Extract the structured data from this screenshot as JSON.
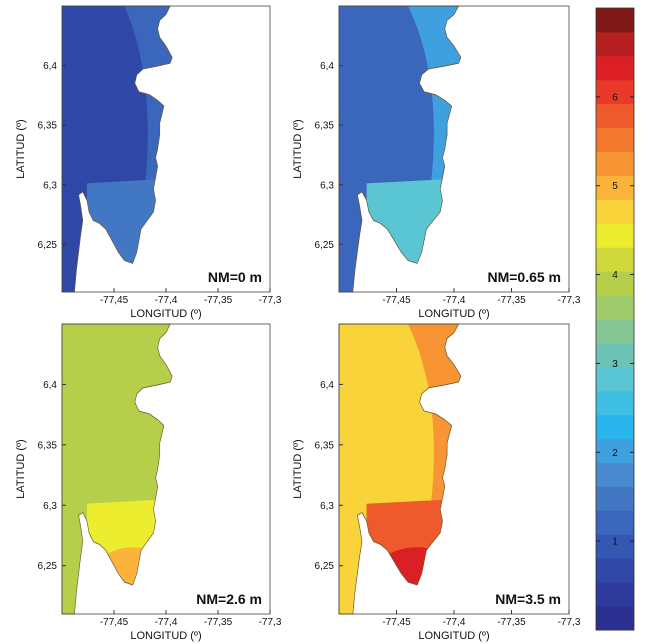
{
  "figure": {
    "colors": {
      "land_outline": "#6b5a3a",
      "sea": "#ffffff"
    }
  },
  "chart_data": [
    {
      "type": "heatmap",
      "panel": "nm0",
      "annotation": "NM=0 m",
      "xlabel": "LONGITUD (º)",
      "ylabel": "LATITUD (º)",
      "xticks": [
        "-77,45",
        "-77,4",
        "-77,35",
        "-77,3"
      ],
      "yticks": [
        "6,4",
        "6,35",
        "6,3",
        "6,25"
      ],
      "xtick_values": [
        -77.45,
        -77.4,
        -77.35,
        -77.3
      ],
      "ytick_values": [
        6.4,
        6.35,
        6.3,
        6.25
      ],
      "xlim": [
        -77.5,
        -77.3
      ],
      "ylim": [
        6.21,
        6.45
      ],
      "zones": [
        {
          "zone": "north-west",
          "value": 0.7
        },
        {
          "zone": "bay",
          "value": 1.2
        },
        {
          "zone": "south-peninsula",
          "value": 1.5
        }
      ]
    },
    {
      "type": "heatmap",
      "panel": "nm065",
      "annotation": "NM=0.65 m",
      "xlabel": "LONGITUD (º)",
      "ylabel": "LATITUD (º)",
      "xticks": [
        "-77,45",
        "-77,4",
        "-77,35",
        "-77,3"
      ],
      "yticks": [
        "6,4",
        "6,35",
        "6,3",
        "6,25"
      ],
      "xtick_values": [
        -77.45,
        -77.4,
        -77.35,
        -77.3
      ],
      "ytick_values": [
        6.4,
        6.35,
        6.3,
        6.25
      ],
      "xlim": [
        -77.5,
        -77.3
      ],
      "ylim": [
        6.21,
        6.45
      ],
      "zones": [
        {
          "zone": "north-west",
          "value": 1.3
        },
        {
          "zone": "bay",
          "value": 1.9
        },
        {
          "zone": "south-peninsula",
          "value": 2.7
        }
      ]
    },
    {
      "type": "heatmap",
      "panel": "nm26",
      "annotation": "NM=2.6 m",
      "xlabel": "LONGITUD (º)",
      "ylabel": "LATITUD (º)",
      "xticks": [
        "-77,45",
        "-77,4",
        "-77,35",
        "-77,3"
      ],
      "yticks": [
        "6,4",
        "6,35",
        "6,3",
        "6,25"
      ],
      "xtick_values": [
        -77.45,
        -77.4,
        -77.35,
        -77.3
      ],
      "ytick_values": [
        6.4,
        6.35,
        6.3,
        6.25
      ],
      "xlim": [
        -77.5,
        -77.3
      ],
      "ylim": [
        6.21,
        6.45
      ],
      "zones": [
        {
          "zone": "north-west",
          "value": 3.8
        },
        {
          "zone": "bay",
          "value": 4.0
        },
        {
          "zone": "south-peninsula",
          "value": 4.5
        },
        {
          "zone": "south-tip",
          "value": 5.0
        }
      ]
    },
    {
      "type": "heatmap",
      "panel": "nm35",
      "annotation": "NM=3.5 m",
      "xlabel": "LONGITUD (º)",
      "ylabel": "LATITUD (º)",
      "xticks": [
        "-77,45",
        "-77,4",
        "-77,35",
        "-77,3"
      ],
      "yticks": [
        "6,4",
        "6,35",
        "6,3",
        "6,25"
      ],
      "xtick_values": [
        -77.45,
        -77.4,
        -77.35,
        -77.3
      ],
      "ytick_values": [
        6.4,
        6.35,
        6.3,
        6.25
      ],
      "xlim": [
        -77.5,
        -77.3
      ],
      "ylim": [
        6.21,
        6.45
      ],
      "zones": [
        {
          "zone": "north-west",
          "value": 4.7
        },
        {
          "zone": "bay",
          "value": 5.2
        },
        {
          "zone": "south-peninsula",
          "value": 5.8
        },
        {
          "zone": "south-tip",
          "value": 6.4
        }
      ]
    },
    {
      "type": "colorbar",
      "range": [
        0,
        7
      ],
      "ticks": [
        "1",
        "2",
        "3",
        "4",
        "5",
        "6"
      ],
      "tick_values": [
        1,
        2,
        3,
        4,
        5,
        6
      ],
      "colors": [
        "#2b2f8f",
        "#2e3b9c",
        "#2f48a8",
        "#3457b2",
        "#3a66bb",
        "#4277c4",
        "#4a8acf",
        "#3fa0df",
        "#2ab4ec",
        "#3fbfe4",
        "#5ac6d3",
        "#6cc3b5",
        "#86c695",
        "#9fcb6c",
        "#b5cf4a",
        "#cfd93b",
        "#eded2f",
        "#f9d33a",
        "#fbb33a",
        "#f79534",
        "#f3792f",
        "#ef5a2c",
        "#e93a29",
        "#db2025",
        "#b51f1f",
        "#801818"
      ]
    }
  ]
}
